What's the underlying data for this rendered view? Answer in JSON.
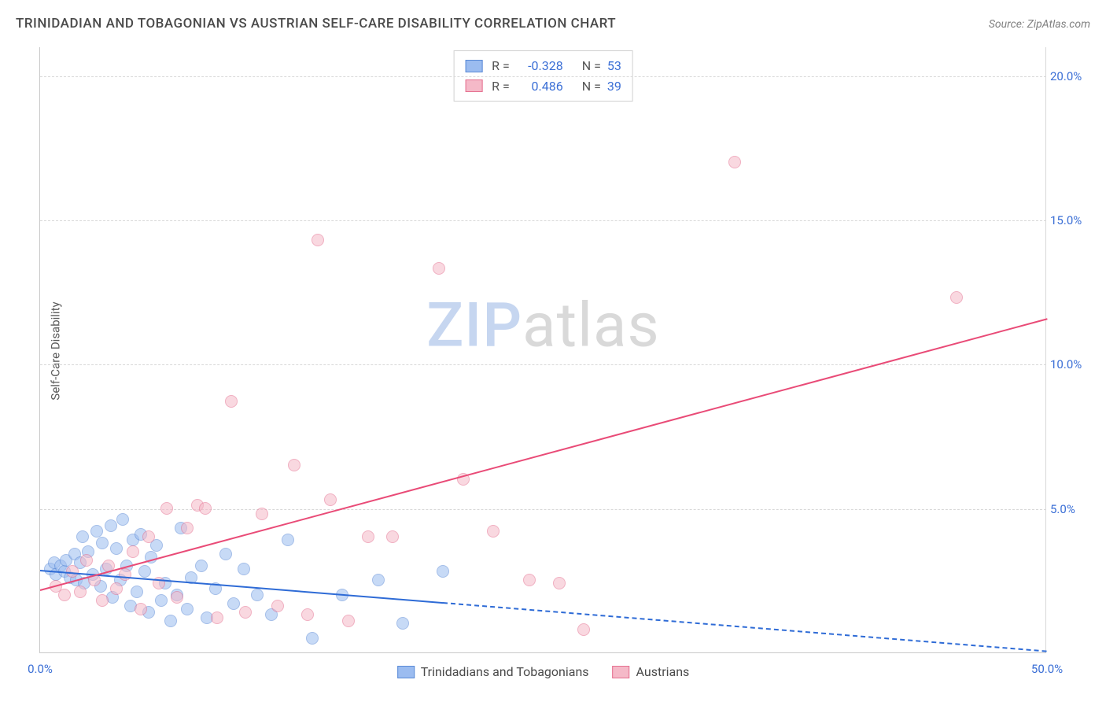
{
  "title": "TRINIDADIAN AND TOBAGONIAN VS AUSTRIAN SELF-CARE DISABILITY CORRELATION CHART",
  "source": "Source: ZipAtlas.com",
  "ylabel": "Self-Care Disability",
  "watermark": {
    "part1": "ZIP",
    "part2": "atlas"
  },
  "chart": {
    "type": "scatter",
    "xlim": [
      0,
      50
    ],
    "ylim": [
      0,
      21
    ],
    "xticks": [
      {
        "v": 0,
        "label": "0.0%"
      },
      {
        "v": 50,
        "label": "50.0%"
      }
    ],
    "yticks": [
      {
        "v": 5,
        "label": "5.0%"
      },
      {
        "v": 10,
        "label": "10.0%"
      },
      {
        "v": 15,
        "label": "15.0%"
      },
      {
        "v": 20,
        "label": "20.0%"
      }
    ],
    "grid_color": "#d8d8d8",
    "background_color": "#ffffff",
    "marker_radius": 8,
    "marker_opacity": 0.55,
    "series": [
      {
        "name": "Trinidadians and Tobagonians",
        "color_fill": "#9bbcf0",
        "color_stroke": "#5a8ad6",
        "R": "-0.328",
        "N": "53",
        "trend": {
          "x0": 0,
          "y0": 2.9,
          "x1": 50,
          "y1": 0.1,
          "color": "#2e6bd6",
          "solid_until_x": 20
        },
        "points": [
          [
            0.5,
            2.9
          ],
          [
            0.7,
            3.1
          ],
          [
            0.8,
            2.7
          ],
          [
            1.0,
            3.0
          ],
          [
            1.2,
            2.8
          ],
          [
            1.3,
            3.2
          ],
          [
            1.5,
            2.6
          ],
          [
            1.7,
            3.4
          ],
          [
            1.8,
            2.5
          ],
          [
            2.0,
            3.1
          ],
          [
            2.1,
            4.0
          ],
          [
            2.2,
            2.4
          ],
          [
            2.4,
            3.5
          ],
          [
            2.6,
            2.7
          ],
          [
            2.8,
            4.2
          ],
          [
            3.0,
            2.3
          ],
          [
            3.1,
            3.8
          ],
          [
            3.3,
            2.9
          ],
          [
            3.5,
            4.4
          ],
          [
            3.6,
            1.9
          ],
          [
            3.8,
            3.6
          ],
          [
            4.0,
            2.5
          ],
          [
            4.1,
            4.6
          ],
          [
            4.3,
            3.0
          ],
          [
            4.5,
            1.6
          ],
          [
            4.6,
            3.9
          ],
          [
            4.8,
            2.1
          ],
          [
            5.0,
            4.1
          ],
          [
            5.2,
            2.8
          ],
          [
            5.4,
            1.4
          ],
          [
            5.5,
            3.3
          ],
          [
            5.8,
            3.7
          ],
          [
            6.0,
            1.8
          ],
          [
            6.2,
            2.4
          ],
          [
            6.5,
            1.1
          ],
          [
            6.8,
            2.0
          ],
          [
            7.0,
            4.3
          ],
          [
            7.3,
            1.5
          ],
          [
            7.5,
            2.6
          ],
          [
            8.0,
            3.0
          ],
          [
            8.3,
            1.2
          ],
          [
            8.7,
            2.2
          ],
          [
            9.2,
            3.4
          ],
          [
            9.6,
            1.7
          ],
          [
            10.1,
            2.9
          ],
          [
            10.8,
            2.0
          ],
          [
            11.5,
            1.3
          ],
          [
            12.3,
            3.9
          ],
          [
            13.5,
            0.5
          ],
          [
            15.0,
            2.0
          ],
          [
            16.8,
            2.5
          ],
          [
            18.0,
            1.0
          ],
          [
            20.0,
            2.8
          ]
        ]
      },
      {
        "name": "Austrians",
        "color_fill": "#f5b9c8",
        "color_stroke": "#e56f8f",
        "R": "0.486",
        "N": "39",
        "trend": {
          "x0": 0,
          "y0": 2.2,
          "x1": 50,
          "y1": 11.6,
          "color": "#e94b77",
          "solid_until_x": 50
        },
        "points": [
          [
            0.8,
            2.3
          ],
          [
            1.2,
            2.0
          ],
          [
            1.6,
            2.8
          ],
          [
            2.0,
            2.1
          ],
          [
            2.3,
            3.2
          ],
          [
            2.7,
            2.5
          ],
          [
            3.1,
            1.8
          ],
          [
            3.4,
            3.0
          ],
          [
            3.8,
            2.2
          ],
          [
            4.2,
            2.7
          ],
          [
            4.6,
            3.5
          ],
          [
            5.0,
            1.5
          ],
          [
            5.4,
            4.0
          ],
          [
            5.9,
            2.4
          ],
          [
            6.3,
            5.0
          ],
          [
            6.8,
            1.9
          ],
          [
            7.3,
            4.3
          ],
          [
            7.8,
            5.1
          ],
          [
            8.2,
            5.0
          ],
          [
            8.8,
            1.2
          ],
          [
            9.5,
            8.7
          ],
          [
            10.2,
            1.4
          ],
          [
            11.0,
            4.8
          ],
          [
            11.8,
            1.6
          ],
          [
            12.6,
            6.5
          ],
          [
            13.3,
            1.3
          ],
          [
            13.8,
            14.3
          ],
          [
            14.4,
            5.3
          ],
          [
            15.3,
            1.1
          ],
          [
            16.3,
            4.0
          ],
          [
            17.5,
            4.0
          ],
          [
            19.8,
            13.3
          ],
          [
            21.0,
            6.0
          ],
          [
            22.5,
            4.2
          ],
          [
            24.3,
            2.5
          ],
          [
            25.8,
            2.4
          ],
          [
            27.0,
            0.8
          ],
          [
            34.5,
            17.0
          ],
          [
            45.5,
            12.3
          ]
        ]
      }
    ]
  },
  "legend_top_label_R": "R =",
  "legend_top_label_N": "N ="
}
